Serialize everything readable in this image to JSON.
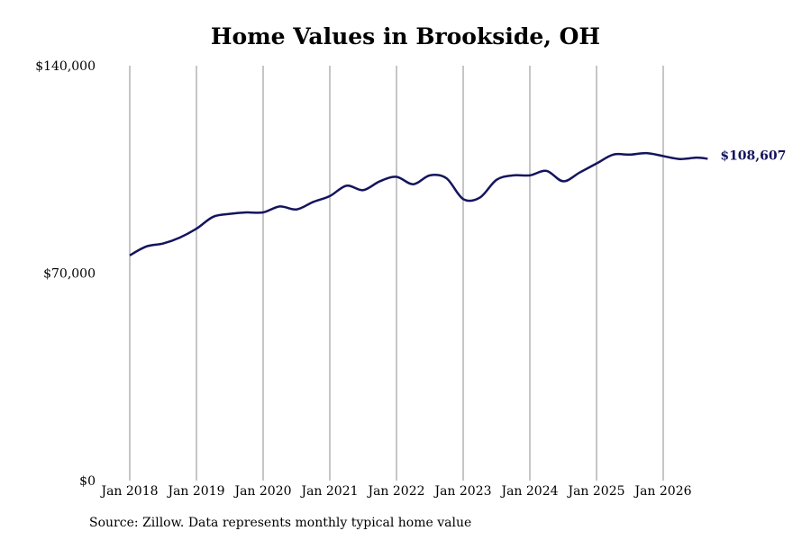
{
  "chart_data": {
    "type": "line",
    "title": "Home Values in Brookside, OH",
    "xlabel": "",
    "ylabel": "",
    "x_ticks": [
      "Jan 2018",
      "Jan 2019",
      "Jan 2020",
      "Jan 2021",
      "Jan 2022",
      "Jan 2023",
      "Jan 2024",
      "Jan 2025",
      "Jan 2026"
    ],
    "y_ticks": [
      "$0",
      "$70,000",
      "$140,000"
    ],
    "ylim": [
      0,
      140000
    ],
    "xlim": [
      "2018-01",
      "2026-09"
    ],
    "grid": {
      "vertical": true,
      "horizontal": false
    },
    "line_color": "#14145e",
    "end_label": "$108,607",
    "series": [
      {
        "x": [
          "2018-01",
          "2018-04",
          "2018-07",
          "2018-10",
          "2019-01",
          "2019-04",
          "2019-07",
          "2019-10",
          "2020-01",
          "2020-04",
          "2020-07",
          "2020-10",
          "2021-01",
          "2021-04",
          "2021-07",
          "2021-10",
          "2022-01",
          "2022-04",
          "2022-07",
          "2022-10",
          "2023-01",
          "2023-04",
          "2023-07",
          "2023-10",
          "2024-01",
          "2024-04",
          "2024-07",
          "2024-10",
          "2025-01",
          "2025-04",
          "2025-07",
          "2025-10",
          "2026-01",
          "2026-04",
          "2026-07",
          "2026-09"
        ],
        "values": [
          76000,
          79000,
          80000,
          82000,
          85000,
          89000,
          90000,
          90500,
          90500,
          92500,
          91500,
          94000,
          96000,
          99500,
          98000,
          101000,
          102500,
          100000,
          103000,
          102000,
          95000,
          95500,
          101500,
          103000,
          103000,
          104500,
          101000,
          104000,
          107000,
          110000,
          110000,
          110500,
          109500,
          108500,
          109000,
          108607
        ]
      }
    ]
  },
  "source": "Source: Zillow. Data represents monthly typical home value"
}
